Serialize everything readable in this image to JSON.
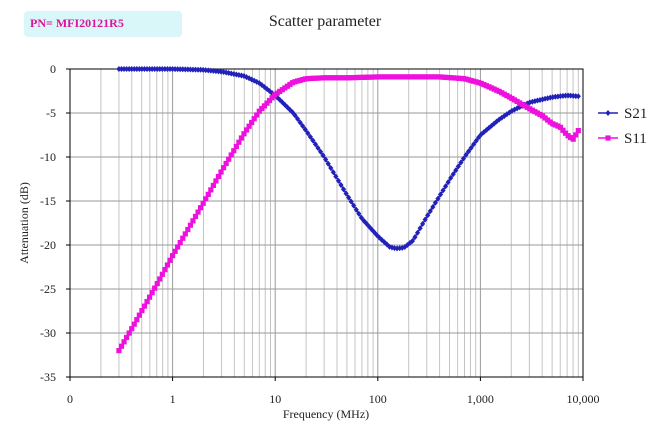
{
  "badge": {
    "text": "PN= MFI20121R5"
  },
  "chart_data": {
    "type": "line",
    "title": "Scatter parameter",
    "xlabel": "Frequency (MHz)",
    "ylabel": "Attenuation (dB)",
    "xscale": "log",
    "xlim": [
      0.1,
      10000
    ],
    "ylim": [
      -35,
      0
    ],
    "grid": true,
    "legend": "right",
    "x_tick_labels": [
      "0",
      "1",
      "10",
      "100",
      "1,000",
      "10,000"
    ],
    "y_ticks": [
      0,
      -5,
      -10,
      -15,
      -20,
      -25,
      -30,
      -35
    ],
    "y_tick_labels": [
      "0",
      "-5",
      "-10",
      "-15",
      "-20",
      "-25",
      "-30",
      "-35"
    ],
    "series": [
      {
        "name": "S21",
        "color": "#2222bb",
        "marker": "diamond",
        "x": [
          0.3,
          0.5,
          1,
          2,
          3,
          5,
          7,
          10,
          15,
          20,
          30,
          50,
          70,
          100,
          130,
          150,
          180,
          220,
          300,
          500,
          700,
          1000,
          1500,
          2000,
          3000,
          5000,
          7000,
          9000
        ],
        "y": [
          0,
          0,
          0,
          -0.1,
          -0.3,
          -0.8,
          -1.6,
          -3,
          -5,
          -7,
          -10,
          -14.3,
          -17,
          -19,
          -20.2,
          -20.4,
          -20.3,
          -19.5,
          -16.8,
          -12.6,
          -10,
          -7.5,
          -5.8,
          -4.8,
          -3.8,
          -3.2,
          -3,
          -3.1
        ]
      },
      {
        "name": "S11",
        "color": "#ee11dd",
        "marker": "square",
        "x": [
          0.3,
          0.4,
          0.5,
          0.7,
          1,
          1.5,
          2,
          3,
          5,
          7,
          10,
          15,
          20,
          30,
          50,
          100,
          200,
          400,
          700,
          1000,
          1500,
          2000,
          3000,
          4000,
          5000,
          6000,
          7000,
          8000,
          9000
        ],
        "y": [
          -32,
          -29.5,
          -27.5,
          -24.5,
          -21.2,
          -17.7,
          -15.2,
          -11.6,
          -7.3,
          -4.8,
          -2.9,
          -1.5,
          -1.1,
          -1,
          -1,
          -0.9,
          -0.9,
          -0.9,
          -1.1,
          -1.6,
          -2.5,
          -3.3,
          -4.5,
          -5.3,
          -6.2,
          -6.6,
          -7.5,
          -8,
          -7
        ]
      }
    ]
  }
}
